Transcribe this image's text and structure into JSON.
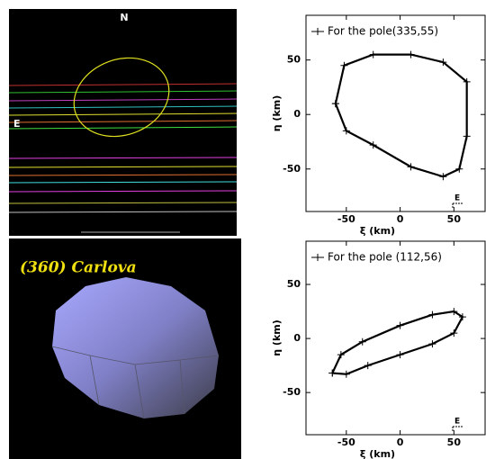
{
  "occultation": {
    "north": "N",
    "east": "E"
  },
  "model": {
    "title": "(360) Carlova"
  },
  "chart_data": [
    {
      "type": "line",
      "xlabel": "ξ (km)",
      "ylabel": "η (km)",
      "annotation": "E",
      "legend": "upper left",
      "xlim": [
        -87.5,
        79
      ],
      "ylim": [
        -89,
        91
      ],
      "xticks": [
        -50,
        0,
        50
      ],
      "yticks": [
        -50,
        0,
        50
      ],
      "series": [
        {
          "name": "For the pole(335,55)",
          "color": "#000000",
          "x": [
            -60,
            -52,
            -25,
            10,
            40,
            62,
            62,
            55,
            40,
            10,
            -25,
            -50,
            -60
          ],
          "values": [
            10,
            45,
            55,
            55,
            48,
            30,
            -20,
            -50,
            -57,
            -48,
            -28,
            -15,
            10
          ]
        }
      ]
    },
    {
      "type": "line",
      "xlabel": "ξ (km)",
      "ylabel": "η (km)",
      "annotation": "E",
      "legend": "upper left",
      "xlim": [
        -87.5,
        79
      ],
      "ylim": [
        -89,
        90
      ],
      "xticks": [
        -50,
        0,
        50
      ],
      "yticks": [
        -50,
        0,
        50
      ],
      "series": [
        {
          "name": "For the pole (112,56)",
          "color": "#000000",
          "x": [
            -63,
            -55,
            -35,
            0,
            30,
            50,
            58,
            50,
            30,
            0,
            -30,
            -50,
            -63
          ],
          "values": [
            -32,
            -15,
            -3,
            12,
            22,
            25,
            20,
            5,
            -5,
            -15,
            -25,
            -33,
            -32
          ]
        }
      ]
    }
  ]
}
